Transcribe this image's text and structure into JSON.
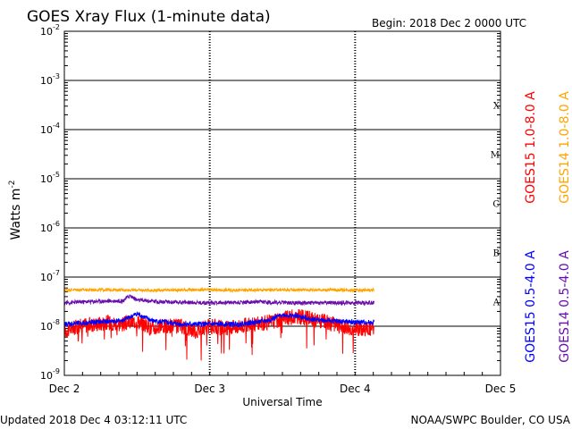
{
  "header": {
    "title": "GOES Xray Flux (1-minute data)",
    "begin": "Begin:  2018 Dec 2 0000 UTC"
  },
  "footer": {
    "updated": "Updated 2018 Dec  4 03:12:11 UTC",
    "credit": "NOAA/SWPC Boulder, CO USA"
  },
  "chart_data": {
    "type": "line",
    "title": "GOES Xray Flux (1-minute data)",
    "xlabel": "Universal Time",
    "ylabel": "Watts m",
    "ylabel_sup": "-2",
    "yscale": "log",
    "ylim": [
      1e-09,
      0.01
    ],
    "y_ticks": [
      {
        "base": "10",
        "exp": "-2",
        "value": 0.01
      },
      {
        "base": "10",
        "exp": "-3",
        "value": 0.001
      },
      {
        "base": "10",
        "exp": "-4",
        "value": 0.0001
      },
      {
        "base": "10",
        "exp": "-5",
        "value": 1e-05
      },
      {
        "base": "10",
        "exp": "-6",
        "value": 1e-06
      },
      {
        "base": "10",
        "exp": "-7",
        "value": 1e-07
      },
      {
        "base": "10",
        "exp": "-8",
        "value": 1e-08
      },
      {
        "base": "10",
        "exp": "-9",
        "value": 1e-09
      }
    ],
    "x_unit": "days since 2018 Dec 2 0000 UTC",
    "xlim": [
      0,
      3
    ],
    "x_ticks": [
      {
        "label": "Dec 2",
        "value": 0
      },
      {
        "label": "Dec 3",
        "value": 1
      },
      {
        "label": "Dec 4",
        "value": 2
      },
      {
        "label": "Dec 5",
        "value": 3
      }
    ],
    "flare_classes": [
      {
        "label": "X",
        "value": 0.0001
      },
      {
        "label": "M",
        "value": 1e-05
      },
      {
        "label": "C",
        "value": 1e-06
      },
      {
        "label": "B",
        "value": 1e-07
      },
      {
        "label": "A",
        "value": 1e-08
      }
    ],
    "series": [
      {
        "name": "GOES15 1.0-8.0 A",
        "color": "#ff0000",
        "x": [
          0,
          0.1,
          0.2,
          0.3,
          0.4,
          0.5,
          0.6,
          0.7,
          0.8,
          0.9,
          1.0,
          1.1,
          1.2,
          1.3,
          1.4,
          1.5,
          1.6,
          1.7,
          1.8,
          1.9,
          2.0,
          2.13
        ],
        "values": [
          8e-09,
          1e-08,
          1.1e-08,
          1.2e-08,
          1.1e-08,
          1.3e-08,
          9e-09,
          1e-08,
          1e-08,
          8e-09,
          1e-08,
          9e-09,
          1e-08,
          1.1e-08,
          1.2e-08,
          1.4e-08,
          1.6e-08,
          1.4e-08,
          1.2e-08,
          1e-08,
          9e-09,
          9e-09
        ]
      },
      {
        "name": "GOES14 1.0-8.0 A",
        "color": "#ffa500",
        "x": [
          0,
          0.3,
          0.6,
          0.9,
          1.2,
          1.5,
          1.8,
          2.13
        ],
        "values": [
          5.5e-08,
          5.5e-08,
          5.4e-08,
          5.5e-08,
          5.4e-08,
          5.5e-08,
          5.5e-08,
          5.4e-08
        ]
      },
      {
        "name": "GOES15 0.5-4.0 A",
        "color": "#0000ff",
        "x": [
          0,
          0.2,
          0.4,
          0.5,
          0.6,
          0.8,
          1.0,
          1.2,
          1.4,
          1.5,
          1.6,
          1.7,
          1.8,
          2.0,
          2.13
        ],
        "values": [
          1.1e-08,
          1.2e-08,
          1.3e-08,
          1.8e-08,
          1.3e-08,
          1.1e-08,
          1.1e-08,
          1.1e-08,
          1.3e-08,
          1.7e-08,
          1.6e-08,
          1.4e-08,
          1.3e-08,
          1.2e-08,
          1.2e-08
        ]
      },
      {
        "name": "GOES14 0.5-4.0 A",
        "color": "#6a0dad",
        "x": [
          0,
          0.2,
          0.4,
          0.45,
          0.5,
          0.7,
          1.0,
          1.3,
          1.6,
          1.9,
          2.13
        ],
        "values": [
          3e-08,
          3.2e-08,
          3.3e-08,
          4.2e-08,
          3.4e-08,
          3.1e-08,
          3e-08,
          3.1e-08,
          3e-08,
          3e-08,
          3e-08
        ]
      }
    ]
  }
}
